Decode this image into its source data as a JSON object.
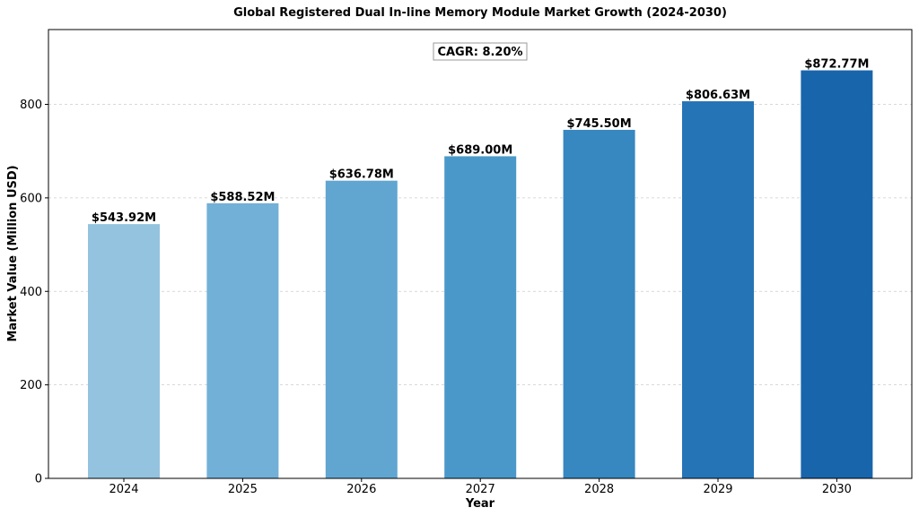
{
  "chart_data": {
    "type": "bar",
    "title": "Global Registered Dual In-line Memory Module Market Growth (2024-2030)",
    "xlabel": "Year",
    "ylabel": "Market Value (Million USD)",
    "categories": [
      "2024",
      "2025",
      "2026",
      "2027",
      "2028",
      "2029",
      "2030"
    ],
    "values": [
      543.92,
      588.52,
      636.78,
      689.0,
      745.5,
      806.63,
      872.77
    ],
    "data_labels": [
      "$543.92M",
      "$588.52M",
      "$636.78M",
      "$689.00M",
      "$745.50M",
      "$806.63M",
      "$872.77M"
    ],
    "colors": [
      "#93c3df",
      "#72b0d7",
      "#60a6d1",
      "#4a98c9",
      "#3787c0",
      "#2574b6",
      "#1865ac"
    ],
    "ylim": [
      0,
      960
    ],
    "yticks": [
      0,
      200,
      400,
      600,
      800
    ],
    "grid": true,
    "annotation": "CAGR: 8.20%"
  }
}
